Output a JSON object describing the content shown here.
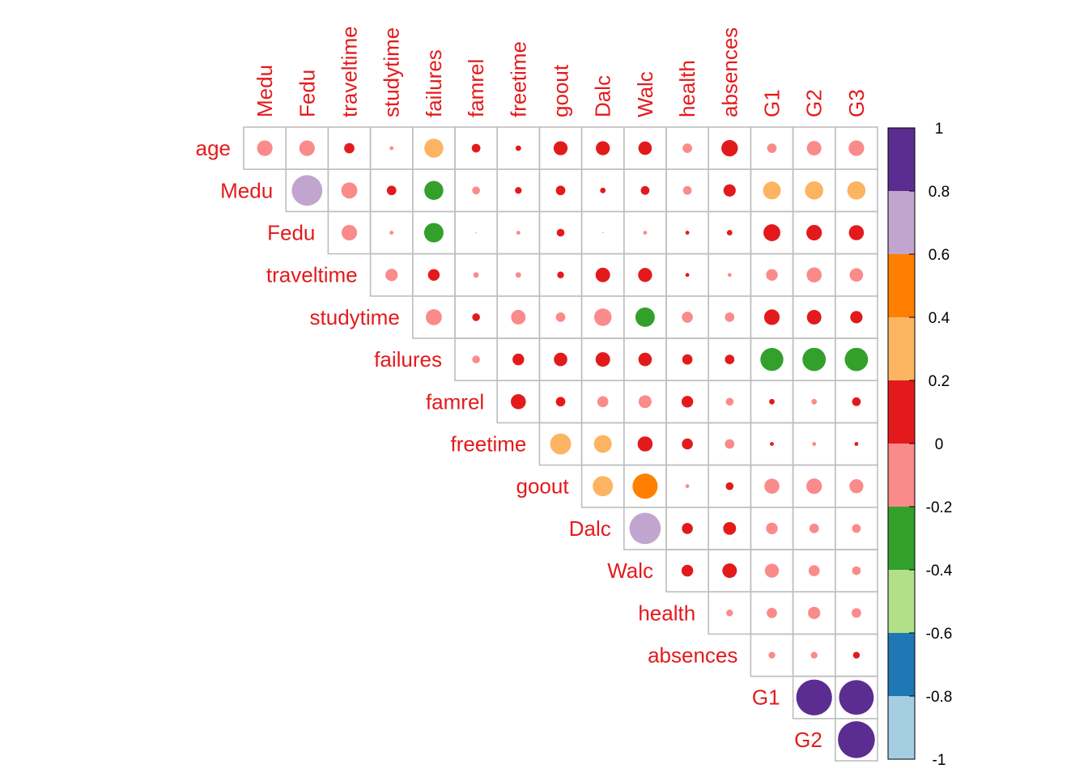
{
  "chart_data": {
    "type": "corrplot-upper-circle",
    "variables": [
      "age",
      "Medu",
      "Fedu",
      "traveltime",
      "studytime",
      "failures",
      "famrel",
      "freetime",
      "goout",
      "Dalc",
      "Walc",
      "health",
      "absences",
      "G1",
      "G2",
      "G3"
    ],
    "row_labels": [
      "age",
      "Medu",
      "Fedu",
      "traveltime",
      "studytime",
      "failures",
      "famrel",
      "freetime",
      "goout",
      "Dalc",
      "Walc",
      "health",
      "absences",
      "G1",
      "G2"
    ],
    "col_labels": [
      "Medu",
      "Fedu",
      "traveltime",
      "studytime",
      "failures",
      "famrel",
      "freetime",
      "goout",
      "Dalc",
      "Walc",
      "health",
      "absences",
      "G1",
      "G2",
      "G3"
    ],
    "matrix": [
      [
        -0.16,
        -0.16,
        0.07,
        -0.01,
        0.24,
        0.05,
        0.02,
        0.13,
        0.13,
        0.12,
        -0.06,
        0.18,
        -0.06,
        -0.14,
        -0.16
      ],
      [
        null,
        0.62,
        -0.17,
        0.06,
        -0.24,
        -0.04,
        0.03,
        0.06,
        0.02,
        0.05,
        -0.05,
        0.1,
        0.21,
        0.22,
        0.22
      ],
      [
        null,
        null,
        -0.16,
        -0.01,
        -0.25,
        -0.0,
        -0.01,
        0.04,
        0.0,
        -0.01,
        0.01,
        0.02,
        0.19,
        0.16,
        0.15
      ],
      [
        null,
        null,
        null,
        -0.1,
        0.09,
        -0.02,
        -0.02,
        0.03,
        0.14,
        0.13,
        0.01,
        -0.01,
        -0.09,
        -0.15,
        -0.12
      ],
      [
        null,
        null,
        null,
        null,
        -0.17,
        0.04,
        -0.14,
        -0.06,
        -0.2,
        -0.25,
        -0.08,
        -0.06,
        0.16,
        0.14,
        0.1
      ],
      [
        null,
        null,
        null,
        null,
        null,
        -0.04,
        0.09,
        0.12,
        0.14,
        0.12,
        0.07,
        0.06,
        -0.35,
        -0.36,
        -0.36
      ],
      [
        null,
        null,
        null,
        null,
        null,
        null,
        0.15,
        0.06,
        -0.08,
        -0.11,
        0.09,
        -0.04,
        0.02,
        -0.02,
        0.05
      ],
      [
        null,
        null,
        null,
        null,
        null,
        null,
        null,
        0.29,
        0.21,
        0.15,
        0.08,
        -0.06,
        0.01,
        -0.01,
        0.01
      ],
      [
        null,
        null,
        null,
        null,
        null,
        null,
        null,
        null,
        0.27,
        0.42,
        -0.01,
        0.04,
        -0.15,
        -0.16,
        -0.13
      ],
      [
        null,
        null,
        null,
        null,
        null,
        null,
        null,
        null,
        null,
        0.65,
        0.08,
        0.11,
        -0.09,
        -0.06,
        -0.05
      ],
      [
        null,
        null,
        null,
        null,
        null,
        null,
        null,
        null,
        null,
        null,
        0.09,
        0.14,
        -0.13,
        -0.08,
        -0.05
      ],
      [
        null,
        null,
        null,
        null,
        null,
        null,
        null,
        null,
        null,
        null,
        null,
        -0.03,
        -0.07,
        -0.1,
        -0.06
      ],
      [
        null,
        null,
        null,
        null,
        null,
        null,
        null,
        null,
        null,
        null,
        null,
        null,
        -0.03,
        -0.03,
        0.03
      ],
      [
        null,
        null,
        null,
        null,
        null,
        null,
        null,
        null,
        null,
        null,
        null,
        null,
        null,
        0.85,
        0.8
      ],
      [
        null,
        null,
        null,
        null,
        null,
        null,
        null,
        null,
        null,
        null,
        null,
        null,
        null,
        null,
        0.9
      ]
    ],
    "colorbar": {
      "ticks": [
        "1",
        "0.8",
        "0.6",
        "0.4",
        "0.2",
        "0",
        "-0.2",
        "-0.4",
        "-0.6",
        "-0.8",
        "-1"
      ],
      "range": [
        -1,
        1
      ],
      "bins_top_to_bottom": [
        "#5c2d91",
        "#c2a5cf",
        "#ff7f00",
        "#fdb462",
        "#e31a1c",
        "#fb8a8a",
        "#33a02c",
        "#b2df8a",
        "#1f78b4",
        "#a6cee3"
      ]
    },
    "label_color": "#e41a1c",
    "grid_color": "#bebebe"
  }
}
